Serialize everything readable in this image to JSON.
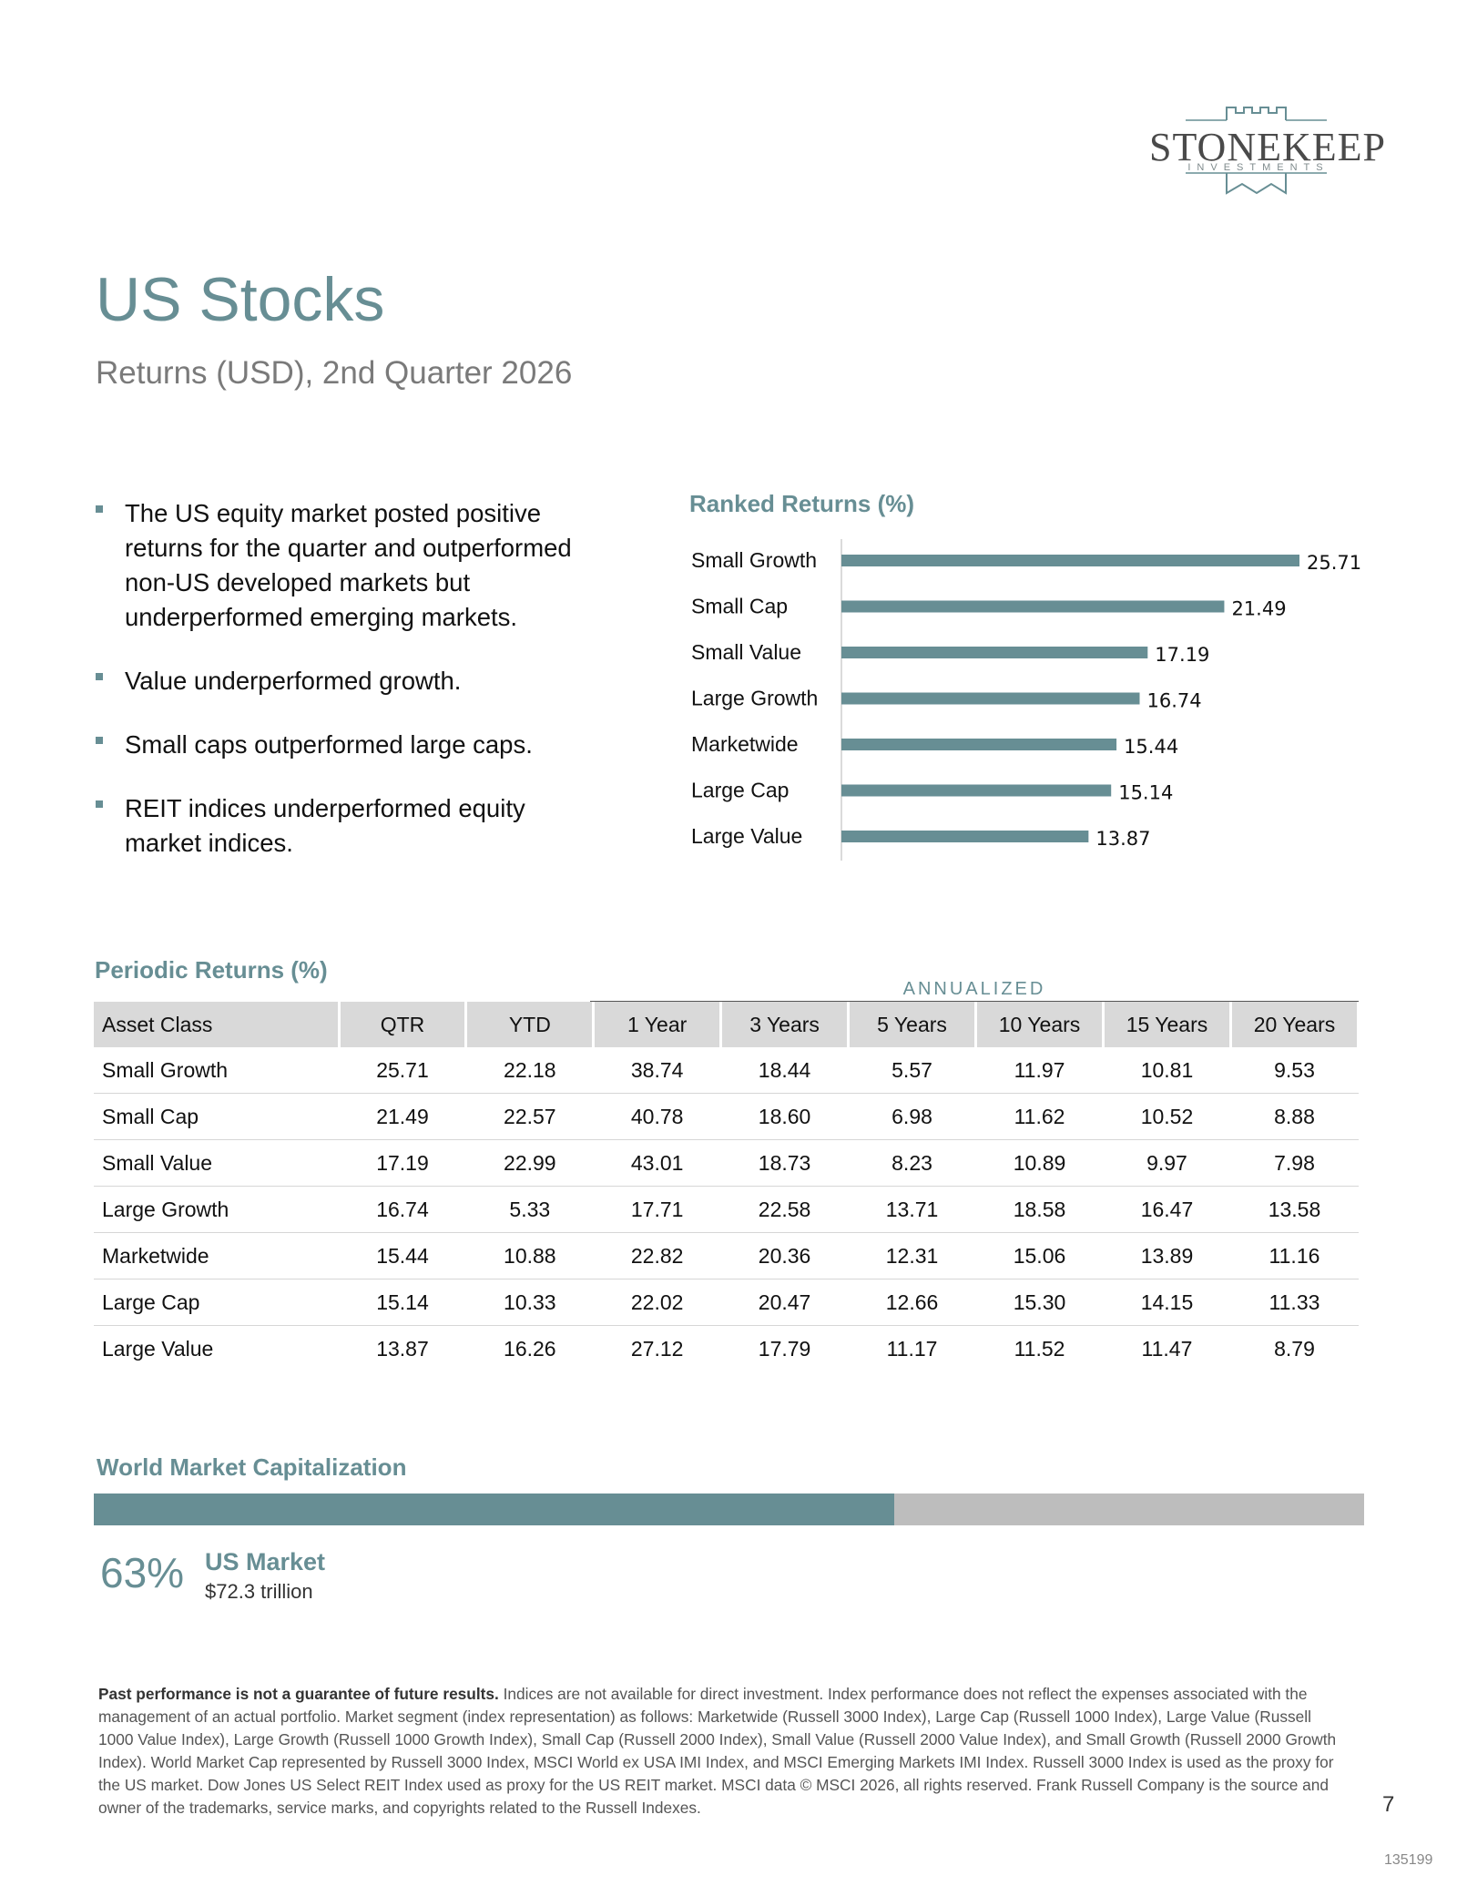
{
  "logo": {
    "name": "STONEKEEP",
    "tagline": "INVESTMENTS"
  },
  "header": {
    "title": "US Stocks",
    "subtitle": "Returns (USD), 2nd Quarter 2026"
  },
  "bullets": [
    "The US equity market posted positive returns for the quarter and outperformed non-US developed markets but underperformed emerging markets.",
    "Value underperformed growth.",
    "Small caps outperformed large caps.",
    "REIT indices underperformed equity market indices."
  ],
  "ranked": {
    "title": "Ranked Returns (%)"
  },
  "chart_data": {
    "type": "bar",
    "orientation": "horizontal",
    "title": "Ranked Returns (%)",
    "categories": [
      "Small Growth",
      "Small Cap",
      "Small Value",
      "Large Growth",
      "Marketwide",
      "Large Cap",
      "Large Value"
    ],
    "values": [
      25.71,
      21.49,
      17.19,
      16.74,
      15.44,
      15.14,
      13.87
    ],
    "data_labels": [
      "25.71",
      "21.49",
      "17.19",
      "16.74",
      "15.44",
      "15.14",
      "13.87"
    ],
    "xlim": [
      0,
      25.71
    ],
    "bar_color": "#678e94",
    "grid": false
  },
  "periodic": {
    "title": "Periodic Returns (%)",
    "annualized_label": "ANNUALIZED",
    "columns": [
      "Asset Class",
      "QTR",
      "YTD",
      "1 Year",
      "3 Years",
      "5 Years",
      "10 Years",
      "15 Years",
      "20 Years"
    ],
    "rows": [
      [
        "Small Growth",
        "25.71",
        "22.18",
        "38.74",
        "18.44",
        "5.57",
        "11.97",
        "10.81",
        "9.53"
      ],
      [
        "Small Cap",
        "21.49",
        "22.57",
        "40.78",
        "18.60",
        "6.98",
        "11.62",
        "10.52",
        "8.88"
      ],
      [
        "Small Value",
        "17.19",
        "22.99",
        "43.01",
        "18.73",
        "8.23",
        "10.89",
        "9.97",
        "7.98"
      ],
      [
        "Large Growth",
        "16.74",
        "5.33",
        "17.71",
        "22.58",
        "13.71",
        "18.58",
        "16.47",
        "13.58"
      ],
      [
        "Marketwide",
        "15.44",
        "10.88",
        "22.82",
        "20.36",
        "12.31",
        "15.06",
        "13.89",
        "11.16"
      ],
      [
        "Large Cap",
        "15.14",
        "10.33",
        "22.02",
        "20.47",
        "12.66",
        "15.30",
        "14.15",
        "11.33"
      ],
      [
        "Large Value",
        "13.87",
        "16.26",
        "27.12",
        "17.79",
        "11.17",
        "11.52",
        "11.47",
        "8.79"
      ]
    ]
  },
  "world_cap": {
    "title": "World Market Capitalization",
    "share_fraction": 0.63,
    "percent_label": "63%",
    "label": "US Market",
    "value": "$72.3 trillion",
    "colors": {
      "us": "#678e94",
      "rest": "#bdbdbd"
    }
  },
  "footer": {
    "disclaimer_bold": "Past performance is not a guarantee of future results.",
    "disclaimer": " Indices are not available for direct investment. Index performance does not reflect the expenses associated with the management of an actual portfolio. Market segment (index representation) as follows: Marketwide (Russell 3000 Index), Large Cap (Russell 1000 Index), Large Value (Russell 1000 Value Index), Large Growth (Russell 1000 Growth Index), Small Cap (Russell 2000 Index), Small Value (Russell 2000 Value Index), and Small Growth (Russell 2000 Growth Index). World Market Cap represented by Russell 3000 Index, MSCI World ex USA IMI Index, and MSCI Emerging Markets IMI Index. Russell 3000 Index is used as the proxy for the US market. Dow Jones US Select REIT Index used as proxy for the US REIT market. MSCI data © MSCI 2026, all rights reserved. Frank Russell Company is the source and owner of the trademarks, service marks, and copyrights related to the Russell Indexes.",
    "page_number": "7",
    "doc_id": "135199"
  }
}
